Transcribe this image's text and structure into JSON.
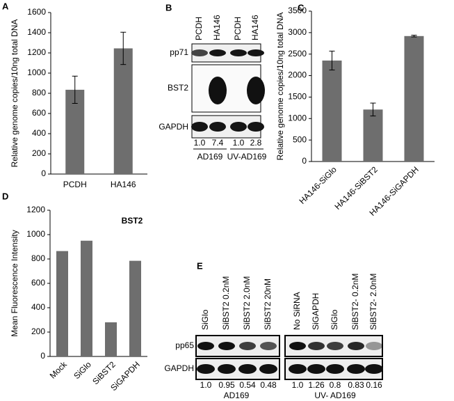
{
  "chart_data": [
    {
      "type": "bar",
      "panel": "A",
      "ylabel": "Relative  genome copies/10ng total DNA",
      "categories": [
        "PCDH",
        "HA146"
      ],
      "values": [
        835,
        1245
      ],
      "errors": [
        135,
        160
      ],
      "color": "#6e6e6e",
      "ylim": [
        0,
        1600
      ],
      "yticks": [
        0,
        200,
        400,
        600,
        800,
        1000,
        1200,
        1400,
        1600
      ]
    },
    {
      "type": "bar",
      "panel": "C",
      "ylabel": "Relative genome copies/10ng total DNA",
      "categories": [
        "HA146-SiGlo",
        "HA146-SiBST2",
        "HA146-SiGAPDH"
      ],
      "values": [
        2350,
        1210,
        2920
      ],
      "errors": [
        220,
        150,
        20
      ],
      "color": "#6e6e6e",
      "ylim": [
        0,
        3500
      ],
      "yticks": [
        0,
        500,
        1000,
        1500,
        2000,
        2500,
        3000,
        3500
      ]
    },
    {
      "type": "bar",
      "panel": "D",
      "ylabel": "Mean Fluorescence Intensity",
      "annotation": "BST2",
      "categories": [
        "Mock",
        "SiGlo",
        "SiBST2",
        "SiGAPDH"
      ],
      "values": [
        865,
        950,
        280,
        785
      ],
      "color": "#6e6e6e",
      "ylim": [
        0,
        1200
      ],
      "yticks": [
        0,
        200,
        400,
        600,
        800,
        1000,
        1200
      ]
    }
  ],
  "blots": [
    {
      "panel": "B",
      "lanes": [
        "PCDH",
        "HA146",
        "PCDH",
        "HA146"
      ],
      "rows": [
        "pp71",
        "BST2",
        "GAPDH"
      ],
      "quantities": [
        "1.0",
        "7.4",
        "1.0",
        "2.8"
      ],
      "groups": [
        "AD169",
        "UV-AD169"
      ]
    },
    {
      "panel": "E",
      "lanes": [
        "SiGlo",
        "SiBST2 0.2nM",
        "SiBST2 2.0nM",
        "SiBST2 20nM",
        "No SiRNA",
        "SiGAPDH",
        "SiGlo",
        "SiBST2- 0.2nM",
        "SiBST2- 2.0nM"
      ],
      "rows": [
        "pp65",
        "GAPDH"
      ],
      "quantities": [
        "1.0",
        "0.95",
        "0.54",
        "0.48",
        "1.0",
        "1.26",
        "0.8",
        "0.83",
        "0.16"
      ],
      "groups": [
        "AD169",
        "UV- AD169"
      ]
    }
  ]
}
